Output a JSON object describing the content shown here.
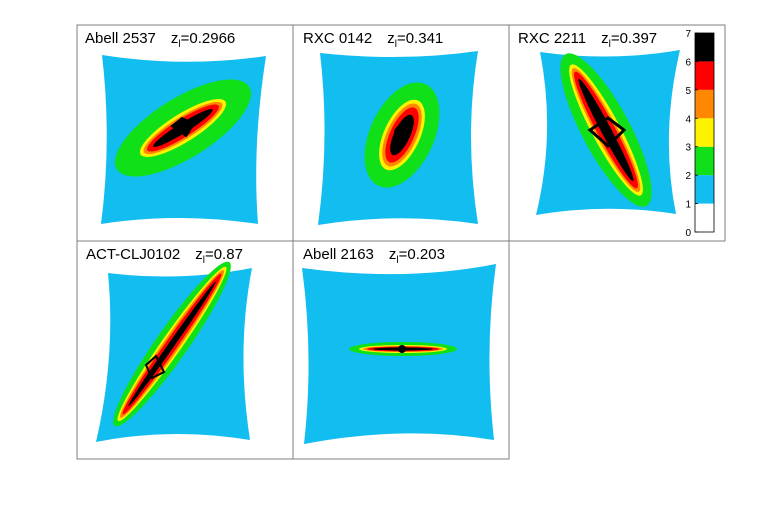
{
  "chart_data": {
    "type": "heatmap",
    "colorbar": {
      "ticks": [
        "0",
        "1",
        "2",
        "3",
        "4",
        "5",
        "6",
        "7"
      ],
      "levels": [
        {
          "min": 0,
          "max": 1,
          "color": "#ffffff"
        },
        {
          "min": 1,
          "max": 2,
          "color": "#12bdf0"
        },
        {
          "min": 2,
          "max": 3,
          "color": "#10e018"
        },
        {
          "min": 3,
          "max": 4,
          "color": "#fff200"
        },
        {
          "min": 4,
          "max": 5,
          "color": "#ff8800"
        },
        {
          "min": 5,
          "max": 6,
          "color": "#ff0000"
        },
        {
          "min": 6,
          "max": 7,
          "color": "#000000"
        }
      ]
    },
    "panels": [
      {
        "name": "Abell 2537",
        "z_label": "z",
        "z_sub": "l",
        "z_value": "=0.2966",
        "orientation_deg": -32,
        "elongation": 2.6
      },
      {
        "name": "RXC 0142",
        "z_label": "z",
        "z_sub": "l",
        "z_value": "=0.341",
        "orientation_deg": -65,
        "elongation": 1.6
      },
      {
        "name": "RXC 2211",
        "z_label": "z",
        "z_sub": "l",
        "z_value": "=0.397",
        "orientation_deg": 62,
        "elongation": 3.0
      },
      {
        "name": "ACT-CLJ0102",
        "z_label": "z",
        "z_sub": "l",
        "z_value": "=0.87",
        "orientation_deg": -55,
        "elongation": 3.5
      },
      {
        "name": "Abell 2163",
        "z_label": "z",
        "z_sub": "l",
        "z_value": "=0.203",
        "orientation_deg": 0,
        "elongation": 4.0
      }
    ]
  },
  "colors": {
    "background": "#ffffff",
    "axes_border": "#7f7f7f",
    "critical_curve": "#000000"
  }
}
